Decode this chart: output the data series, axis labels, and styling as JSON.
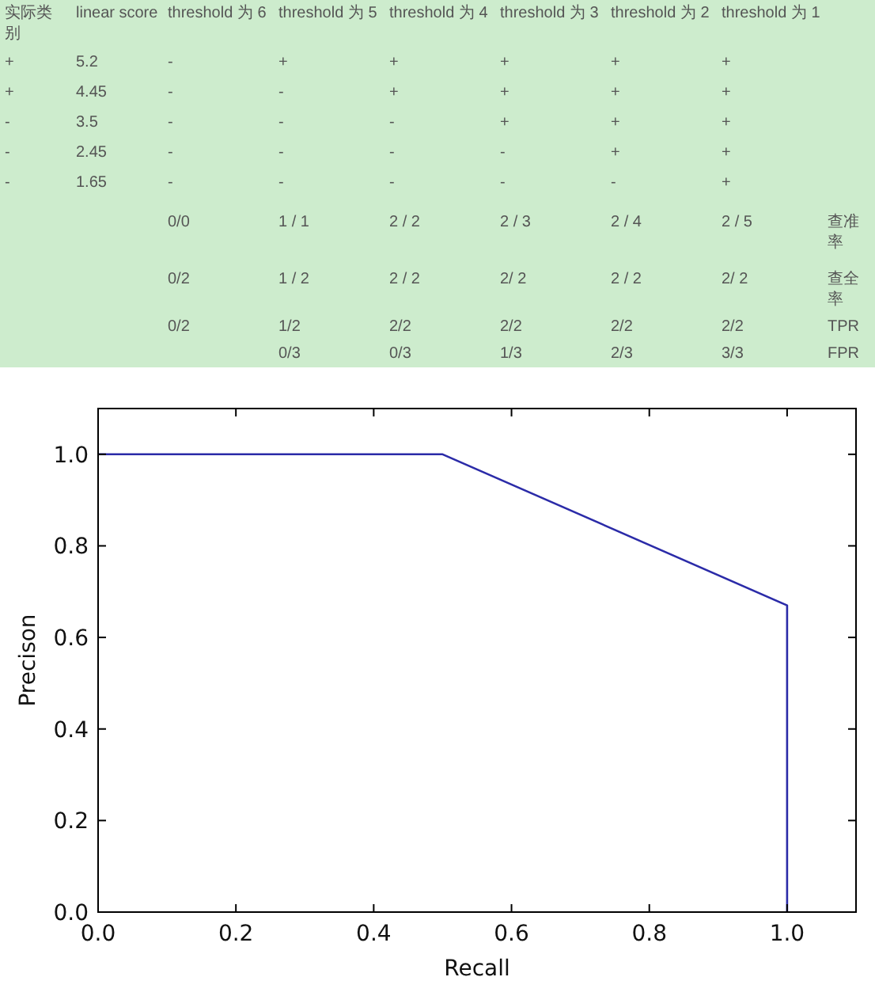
{
  "chart_data": [
    {
      "type": "other",
      "categories": [
        "实际类别",
        "linear score",
        "threshold 为 6",
        "threshold 为 5",
        "threshold 为 4",
        "threshold 为 3",
        "threshold 为 2",
        "threshold 为 1",
        null
      ],
      "cell_labels": [
        [
          "+",
          "5.2",
          "-",
          "+",
          "+",
          "+",
          "+",
          "+",
          null
        ],
        [
          "+",
          "4.45",
          "-",
          "-",
          "+",
          "+",
          "+",
          "+",
          null
        ],
        [
          "-",
          "3.5",
          "-",
          "-",
          "-",
          "+",
          "+",
          "+",
          null
        ],
        [
          "-",
          "2.45",
          "-",
          "-",
          "-",
          "-",
          "+",
          "+",
          null
        ],
        [
          "-",
          "1.65",
          "-",
          "-",
          "-",
          "-",
          "-",
          "+",
          null
        ],
        [
          null,
          null,
          "0/0",
          "1 / 1",
          "2 / 2",
          "2 / 3",
          "2 / 4",
          "2 / 5",
          "查准率"
        ],
        [
          null,
          null,
          "0/2",
          "1 / 2",
          "2 / 2",
          "2/ 2",
          "2 / 2",
          "2/ 2",
          "查全率"
        ],
        [
          null,
          null,
          "0/2",
          "1/2",
          "2/2",
          "2/2",
          "2/2",
          "2/2",
          "TPR"
        ],
        [
          null,
          null,
          null,
          "0/3",
          "0/3",
          "1/3",
          "2/3",
          "3/3",
          "FPR"
        ]
      ]
    },
    {
      "type": "line",
      "xlabel": "Recall",
      "ylabel": "Precison",
      "series": [
        {
          "color": "#2b2ba8",
          "x": [
            0,
            0.5,
            1,
            1
          ],
          "values": [
            1,
            1,
            0.67,
            0
          ]
        }
      ],
      "xlim": [
        0,
        1.1
      ],
      "ylim": [
        0,
        1.1
      ],
      "xticks": [
        {
          "value": 0,
          "label": "0.0"
        },
        {
          "value": 0.2,
          "label": "0.2"
        },
        {
          "value": 0.4,
          "label": "0.4"
        },
        {
          "value": 0.6,
          "label": "0.6"
        },
        {
          "value": 0.8,
          "label": "0.8"
        },
        {
          "value": 1,
          "label": "1.0"
        }
      ],
      "yticks": [
        {
          "value": 0,
          "label": "0.0"
        },
        {
          "value": 0.2,
          "label": "0.2"
        },
        {
          "value": 0.4,
          "label": "0.4"
        },
        {
          "value": 0.6,
          "label": "0.6"
        },
        {
          "value": 0.8,
          "label": "0.8"
        },
        {
          "value": 1,
          "label": "1.0"
        }
      ],
      "grid": false,
      "line_style": "solid"
    }
  ]
}
